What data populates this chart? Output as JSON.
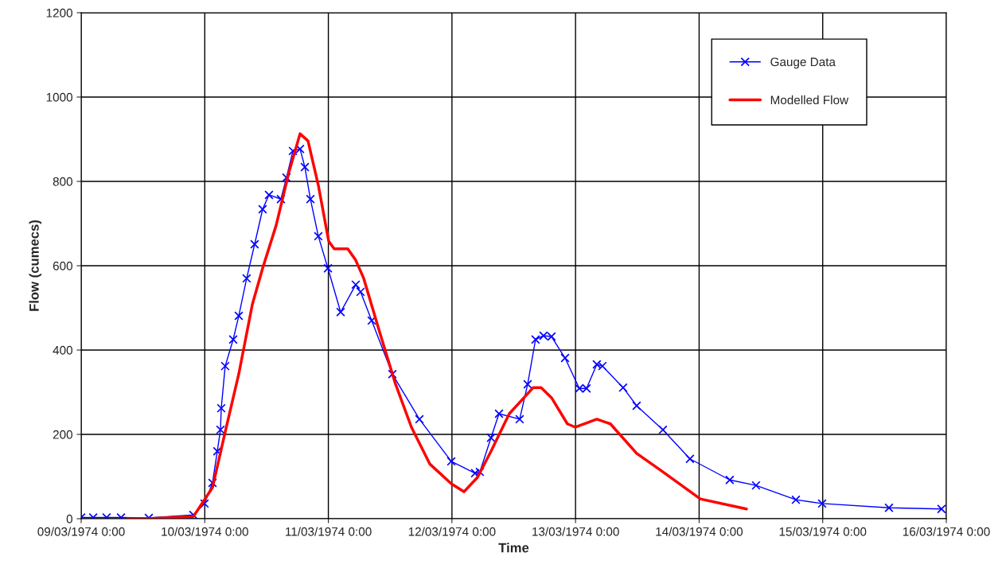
{
  "chart_data": {
    "type": "line",
    "xlabel": "Time",
    "ylabel": "Flow (cumecs)",
    "xlim": [
      "1974-03-09T00:00",
      "1974-03-16T00:00"
    ],
    "xticks": [
      {
        "value": "1974-03-09T00:00",
        "label": "09/03/1974 0:00"
      },
      {
        "value": "1974-03-10T00:00",
        "label": "10/03/1974 0:00"
      },
      {
        "value": "1974-03-11T00:00",
        "label": "11/03/1974 0:00"
      },
      {
        "value": "1974-03-12T00:00",
        "label": "12/03/1974 0:00"
      },
      {
        "value": "1974-03-13T00:00",
        "label": "13/03/1974 0:00"
      },
      {
        "value": "1974-03-14T00:00",
        "label": "14/03/1974 0:00"
      },
      {
        "value": "1974-03-15T00:00",
        "label": "15/03/1974 0:00"
      },
      {
        "value": "1974-03-16T00:00",
        "label": "16/03/1974 0:00"
      }
    ],
    "ylim": [
      0,
      1200
    ],
    "yticks": [
      0,
      200,
      400,
      600,
      800,
      1000,
      1200
    ],
    "grid": true,
    "legend": "top right",
    "series": [
      {
        "name": "Gauge Data",
        "color": "#0000ff",
        "marker": "cross",
        "line_style": "solid",
        "x": [
          "1974-03-09T00:00",
          "1974-03-09T02:20",
          "1974-03-09T04:56",
          "1974-03-09T07:44",
          "1974-03-09T13:08",
          "1974-03-09T21:47",
          "1974-03-09T23:57",
          "1974-03-10T01:30",
          "1974-03-10T02:26",
          "1974-03-10T03:03",
          "1974-03-10T03:12",
          "1974-03-10T03:58",
          "1974-03-10T05:31",
          "1974-03-10T06:36",
          "1974-03-10T08:08",
          "1974-03-10T09:41",
          "1974-03-10T11:14",
          "1974-03-10T12:28",
          "1974-03-10T14:47",
          "1974-03-10T15:52",
          "1974-03-10T17:07",
          "1974-03-10T18:30",
          "1974-03-10T19:26",
          "1974-03-10T20:31",
          "1974-03-10T22:03",
          "1974-03-10T23:55",
          "1974-03-11T02:23",
          "1974-03-11T05:19",
          "1974-03-11T06:15",
          "1974-03-11T08:25",
          "1974-03-11T12:26",
          "1974-03-11T17:41",
          "1974-03-11T23:52",
          "1974-03-12T04:30",
          "1974-03-12T05:25",
          "1974-03-12T07:35",
          "1974-03-12T09:08",
          "1974-03-12T13:09",
          "1974-03-12T14:42",
          "1974-03-12T16:14",
          "1974-03-12T17:47",
          "1974-03-12T19:20",
          "1974-03-12T21:58",
          "1974-03-13T00:44",
          "1974-03-13T02:08",
          "1974-03-13T04:08",
          "1974-03-13T05:13",
          "1974-03-13T09:14",
          "1974-03-13T11:52",
          "1974-03-13T16:58",
          "1974-03-13T22:13",
          "1974-03-14T05:57",
          "1974-03-14T11:03",
          "1974-03-14T18:47",
          "1974-03-14T23:53",
          "1974-03-15T12:52",
          "1974-03-15T23:04"
        ],
        "values": [
          3,
          3,
          3,
          3,
          2,
          9,
          36,
          85,
          160,
          211,
          262,
          362,
          425,
          481,
          570,
          651,
          734,
          768,
          758,
          809,
          872,
          877,
          834,
          758,
          670,
          594,
          490,
          555,
          538,
          470,
          343,
          236,
          136,
          108,
          111,
          192,
          249,
          236,
          319,
          425,
          434,
          432,
          381,
          309,
          309,
          366,
          362,
          311,
          268,
          211,
          142,
          92,
          79,
          45,
          36,
          26,
          23
        ]
      },
      {
        "name": "Modelled Flow",
        "color": "#ff0000",
        "marker": "none",
        "line_style": "solid",
        "x": [
          "1974-03-09T08:58",
          "1974-03-09T12:50",
          "1974-03-09T21:47",
          "1974-03-10T01:30",
          "1974-03-10T03:58",
          "1974-03-10T06:36",
          "1974-03-10T09:14",
          "1974-03-10T11:14",
          "1974-03-10T13:52",
          "1974-03-10T16:20",
          "1974-03-10T18:30",
          "1974-03-10T20:03",
          "1974-03-10T22:03",
          "1974-03-11T00:04",
          "1974-03-11T01:08",
          "1974-03-11T03:46",
          "1974-03-11T05:19",
          "1974-03-11T06:52",
          "1974-03-11T09:57",
          "1974-03-11T13:03",
          "1974-03-11T16:08",
          "1974-03-11T19:41",
          "1974-03-11T23:52",
          "1974-03-12T02:20",
          "1974-03-12T04:58",
          "1974-03-12T07:35",
          "1974-03-12T11:08",
          "1974-03-12T15:47",
          "1974-03-12T17:19",
          "1974-03-12T19:20",
          "1974-03-12T22:25",
          "1974-03-12T23:58",
          "1974-03-13T04:08",
          "1974-03-13T06:46",
          "1974-03-13T11:52",
          "1974-03-13T16:58",
          "1974-03-14T00:14",
          "1974-03-14T09:12"
        ],
        "values": [
          0,
          0,
          5,
          74,
          206,
          343,
          508,
          594,
          696,
          821,
          913,
          896,
          791,
          658,
          640,
          640,
          613,
          570,
          443,
          319,
          217,
          130,
          83,
          64,
          98,
          160,
          249,
          311,
          311,
          287,
          225,
          217,
          236,
          225,
          155,
          111,
          47,
          23
        ]
      }
    ]
  }
}
